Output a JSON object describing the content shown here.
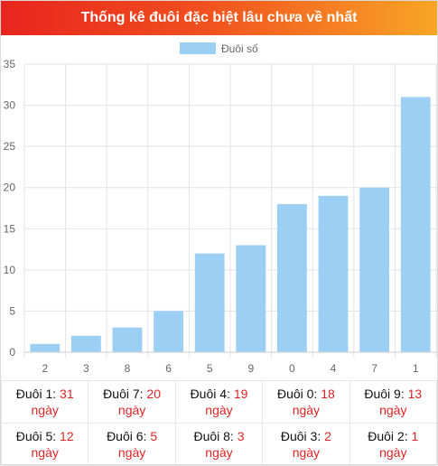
{
  "header": {
    "title": "Thống kê đuôi đặc biệt lâu chưa về nhất"
  },
  "colors": {
    "bar": "#9ccff4",
    "grid": "#e3e3e3",
    "axis_text": "#666666",
    "value_text": "#e02424"
  },
  "chart_data": {
    "type": "bar",
    "categories": [
      "2",
      "3",
      "8",
      "6",
      "5",
      "9",
      "0",
      "4",
      "7",
      "1"
    ],
    "series": [
      {
        "name": "Đuôi số",
        "values": [
          1,
          2,
          3,
          5,
          12,
          13,
          18,
          19,
          20,
          31
        ]
      }
    ],
    "ylim": [
      0,
      35
    ],
    "yticks": [
      0,
      5,
      10,
      15,
      20,
      25,
      30,
      35
    ],
    "grid": true,
    "legend": "top-center"
  },
  "stats": {
    "unit": "ngày",
    "rows": [
      [
        {
          "label": "Đuôi 1:",
          "value": "31"
        },
        {
          "label": "Đuôi 7:",
          "value": "20"
        },
        {
          "label": "Đuôi 4:",
          "value": "19"
        },
        {
          "label": "Đuôi 0:",
          "value": "18"
        },
        {
          "label": "Đuôi 9:",
          "value": "13"
        }
      ],
      [
        {
          "label": "Đuôi 5:",
          "value": "12"
        },
        {
          "label": "Đuôi 6:",
          "value": "5"
        },
        {
          "label": "Đuôi 8:",
          "value": "3"
        },
        {
          "label": "Đuôi 3:",
          "value": "2"
        },
        {
          "label": "Đuôi 2:",
          "value": "1"
        }
      ]
    ]
  }
}
